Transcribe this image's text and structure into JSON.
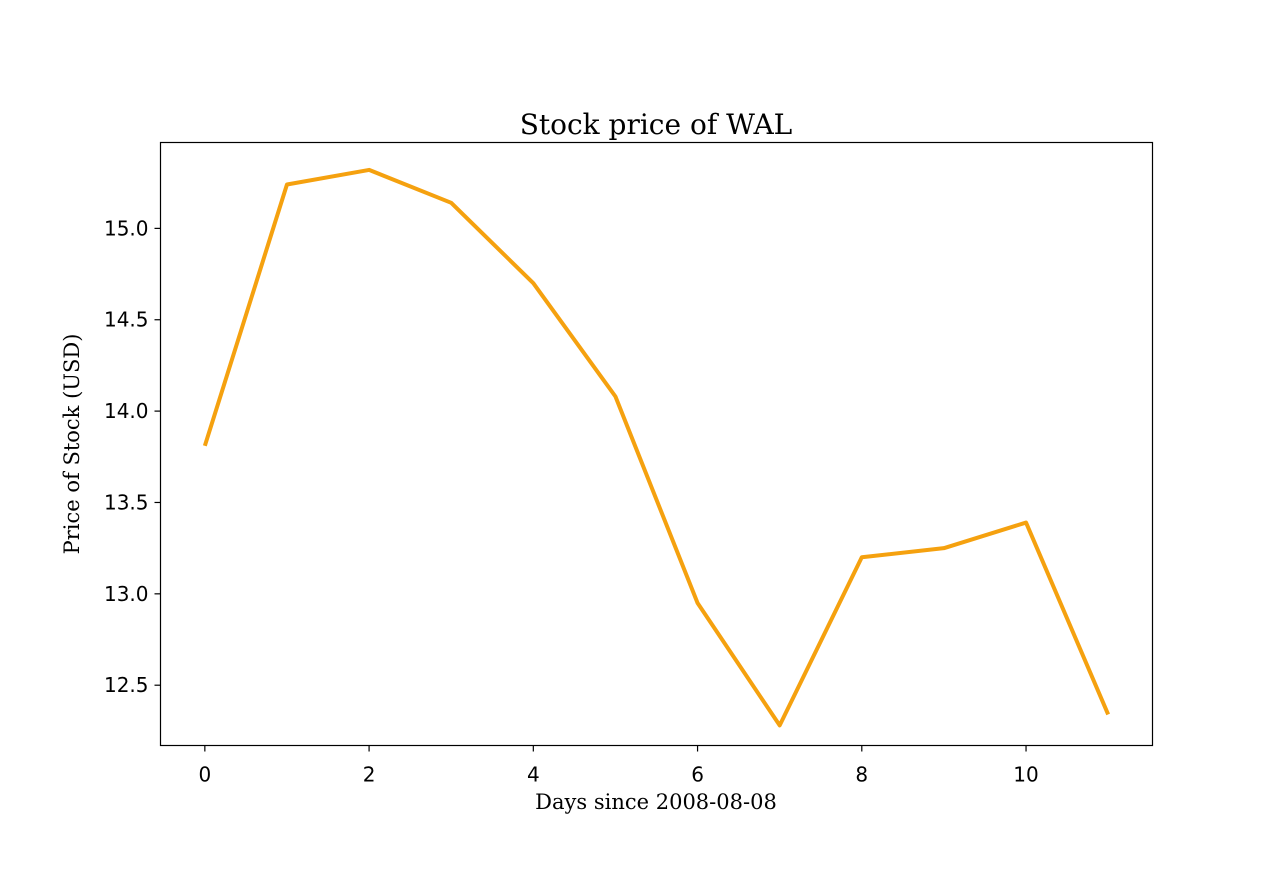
{
  "chart_data": {
    "type": "line",
    "title": "Stock price of WAL",
    "xlabel": "Days since 2008-08-08",
    "ylabel": "Price of Stock (USD)",
    "x": [
      0,
      1,
      2,
      3,
      4,
      5,
      6,
      7,
      8,
      9,
      10,
      11
    ],
    "series": [
      {
        "values": [
          13.81,
          15.24,
          15.32,
          15.14,
          14.7,
          14.08,
          12.95,
          12.28,
          13.2,
          13.25,
          13.39,
          12.34
        ],
        "color": "#f5a10f"
      }
    ],
    "xlim": [
      -0.54,
      11.54
    ],
    "ylim": [
      12.17,
      15.47
    ],
    "xticks": [
      0,
      2,
      4,
      6,
      8,
      10
    ],
    "xtick_labels": [
      "0",
      "2",
      "4",
      "6",
      "8",
      "10"
    ],
    "yticks": [
      12.5,
      13.0,
      13.5,
      14.0,
      14.5,
      15.0
    ],
    "ytick_labels": [
      "12.5",
      "13.0",
      "13.5",
      "14.0",
      "14.5",
      "15.0"
    ],
    "grid": false,
    "legend": "none"
  }
}
